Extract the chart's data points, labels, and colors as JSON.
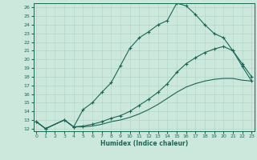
{
  "xlabel": "Humidex (Indice chaleur)",
  "xlim": [
    0,
    23
  ],
  "ylim": [
    12,
    26
  ],
  "yticks": [
    12,
    13,
    14,
    15,
    16,
    17,
    18,
    19,
    20,
    21,
    22,
    23,
    24,
    25,
    26
  ],
  "xticks": [
    0,
    1,
    2,
    3,
    4,
    5,
    6,
    7,
    8,
    9,
    10,
    11,
    12,
    13,
    14,
    15,
    16,
    17,
    18,
    19,
    20,
    21,
    22,
    23
  ],
  "bg_color": "#cce8dd",
  "grid_color": "#aad4c4",
  "line_color": "#1a6655",
  "line1_x": [
    0,
    1,
    3,
    4,
    5,
    6,
    7,
    8,
    9,
    10,
    11,
    12,
    13,
    14,
    15,
    16,
    17,
    18,
    19,
    20,
    21,
    22,
    23
  ],
  "line1_y": [
    12.8,
    12.0,
    13.0,
    12.2,
    14.2,
    15.0,
    16.2,
    17.3,
    19.3,
    21.3,
    22.5,
    23.2,
    24.0,
    24.5,
    26.5,
    26.2,
    25.2,
    24.0,
    23.0,
    22.5,
    21.0,
    19.2,
    17.5
  ],
  "line2_x": [
    0,
    1,
    3,
    4,
    5,
    6,
    7,
    8,
    9,
    10,
    11,
    12,
    13,
    14,
    15,
    16,
    17,
    18,
    19,
    20,
    21,
    22,
    23
  ],
  "line2_y": [
    12.8,
    12.0,
    13.0,
    12.2,
    12.3,
    12.5,
    12.8,
    13.2,
    13.5,
    14.0,
    14.7,
    15.4,
    16.2,
    17.2,
    18.5,
    19.5,
    20.2,
    20.8,
    21.2,
    21.5,
    21.0,
    19.5,
    18.0
  ],
  "line3_x": [
    0,
    1,
    3,
    4,
    5,
    6,
    7,
    8,
    9,
    10,
    11,
    12,
    13,
    14,
    15,
    16,
    17,
    18,
    19,
    20,
    21,
    22,
    23
  ],
  "line3_y": [
    12.8,
    12.0,
    13.0,
    12.2,
    12.2,
    12.3,
    12.5,
    12.8,
    13.0,
    13.3,
    13.7,
    14.2,
    14.8,
    15.5,
    16.2,
    16.8,
    17.2,
    17.5,
    17.7,
    17.8,
    17.8,
    17.6,
    17.5
  ]
}
